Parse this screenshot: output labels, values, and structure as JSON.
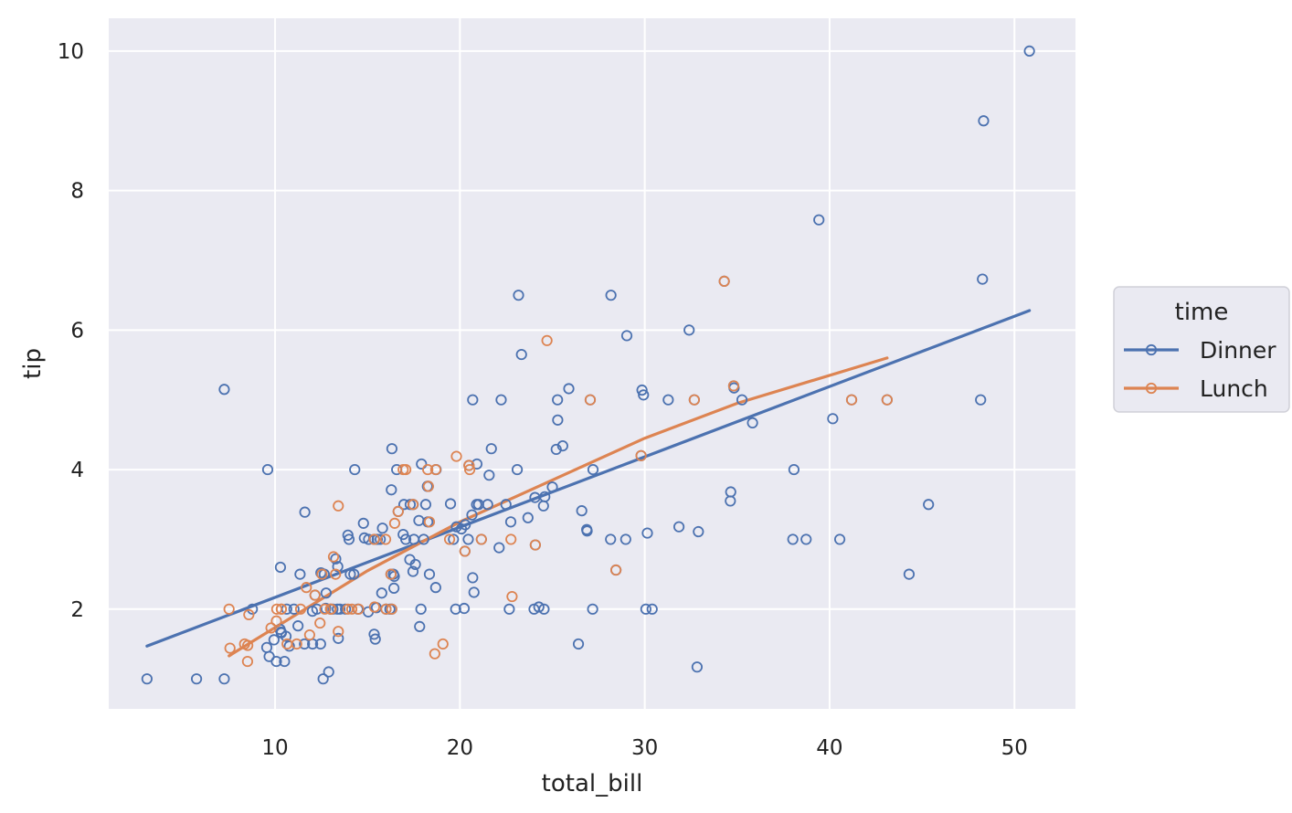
{
  "chart_data": {
    "type": "scatter",
    "xlabel": "total_bill",
    "ylabel": "tip",
    "xlim": [
      1.0,
      53.3
    ],
    "ylim": [
      0.57,
      10.47
    ],
    "xticks": [
      10,
      20,
      30,
      40,
      50
    ],
    "yticks": [
      2,
      4,
      6,
      8,
      10
    ],
    "grid": true,
    "legend": {
      "title": "time",
      "placement": "outside-right"
    },
    "colors": {
      "Dinner": "#4c72b0",
      "Lunch": "#dd8452",
      "background": "#eaeaf2",
      "grid": "#ffffff"
    },
    "series": [
      {
        "name": "Dinner",
        "points": [
          [
            3.07,
            1.0
          ],
          [
            5.75,
            1.0
          ],
          [
            7.25,
            1.0
          ],
          [
            7.25,
            5.15
          ],
          [
            8.77,
            2.0
          ],
          [
            9.55,
            1.45
          ],
          [
            9.6,
            4.0
          ],
          [
            9.68,
            1.32
          ],
          [
            9.94,
            1.56
          ],
          [
            10.07,
            1.25
          ],
          [
            10.29,
            2.6
          ],
          [
            10.33,
            1.67
          ],
          [
            10.34,
            1.66
          ],
          [
            10.51,
            1.25
          ],
          [
            10.59,
            1.61
          ],
          [
            10.63,
            2.0
          ],
          [
            10.77,
            1.47
          ],
          [
            11.02,
            2.0
          ],
          [
            11.24,
            1.76
          ],
          [
            11.35,
            2.5
          ],
          [
            11.59,
            1.5
          ],
          [
            11.61,
            3.39
          ],
          [
            12.02,
            1.97
          ],
          [
            12.03,
            1.5
          ],
          [
            12.16,
            2.2
          ],
          [
            12.26,
            2.0
          ],
          [
            12.46,
            1.5
          ],
          [
            12.6,
            1.0
          ],
          [
            12.66,
            2.5
          ],
          [
            12.74,
            2.01
          ],
          [
            12.76,
            2.23
          ],
          [
            12.9,
            1.1
          ],
          [
            13.0,
            2.0
          ],
          [
            13.28,
            2.72
          ],
          [
            13.37,
            2.0
          ],
          [
            13.39,
            2.61
          ],
          [
            13.42,
            1.58
          ],
          [
            13.81,
            2.0
          ],
          [
            13.94,
            3.06
          ],
          [
            14.07,
            2.5
          ],
          [
            14.26,
            2.5
          ],
          [
            14.31,
            4.0
          ],
          [
            14.48,
            2.0
          ],
          [
            14.78,
            3.23
          ],
          [
            14.83,
            3.02
          ],
          [
            15.04,
            1.96
          ],
          [
            15.06,
            3.0
          ],
          [
            15.36,
            1.64
          ],
          [
            15.38,
            3.0
          ],
          [
            15.42,
            1.57
          ],
          [
            15.48,
            2.02
          ],
          [
            15.69,
            3.0
          ],
          [
            15.77,
            2.23
          ],
          [
            15.81,
            3.16
          ],
          [
            16.0,
            2.0
          ],
          [
            16.21,
            2.0
          ],
          [
            16.27,
            2.5
          ],
          [
            16.29,
            3.71
          ],
          [
            16.31,
            2.0
          ],
          [
            16.32,
            4.3
          ],
          [
            16.4,
            2.5
          ],
          [
            16.45,
            2.47
          ],
          [
            16.66,
            3.4
          ],
          [
            16.93,
            3.07
          ],
          [
            16.97,
            3.5
          ],
          [
            17.07,
            3.0
          ],
          [
            17.29,
            2.71
          ],
          [
            17.31,
            3.5
          ],
          [
            17.46,
            2.54
          ],
          [
            17.59,
            2.64
          ],
          [
            17.78,
            3.27
          ],
          [
            17.82,
            1.75
          ],
          [
            17.89,
            2.0
          ],
          [
            17.92,
            4.08
          ],
          [
            18.04,
            3.0
          ],
          [
            18.15,
            3.5
          ],
          [
            18.24,
            3.76
          ],
          [
            18.29,
            3.76
          ],
          [
            18.35,
            2.5
          ],
          [
            18.69,
            2.31
          ],
          [
            18.71,
            4.0
          ],
          [
            19.49,
            3.51
          ],
          [
            19.65,
            3.0
          ],
          [
            19.77,
            2.0
          ],
          [
            19.81,
            3.18
          ],
          [
            20.08,
            3.15
          ],
          [
            20.23,
            2.01
          ],
          [
            20.27,
            2.83
          ],
          [
            20.29,
            3.21
          ],
          [
            20.45,
            3.0
          ],
          [
            20.49,
            4.06
          ],
          [
            20.65,
            3.35
          ],
          [
            20.69,
            2.45
          ],
          [
            20.76,
            2.24
          ],
          [
            20.69,
            5.0
          ],
          [
            20.9,
            3.5
          ],
          [
            21.01,
            3.5
          ],
          [
            21.16,
            3.0
          ],
          [
            21.58,
            3.92
          ],
          [
            21.7,
            4.3
          ],
          [
            22.12,
            2.88
          ],
          [
            22.23,
            5.0
          ],
          [
            22.49,
            3.5
          ],
          [
            22.75,
            3.25
          ],
          [
            23.1,
            4.0
          ],
          [
            23.17,
            6.5
          ],
          [
            23.33,
            5.65
          ],
          [
            23.68,
            3.31
          ],
          [
            24.01,
            2.0
          ],
          [
            24.06,
            3.6
          ],
          [
            24.27,
            2.03
          ],
          [
            24.52,
            3.48
          ],
          [
            24.55,
            2.0
          ],
          [
            24.59,
            3.61
          ],
          [
            25.0,
            3.75
          ],
          [
            25.21,
            4.29
          ],
          [
            25.28,
            5.0
          ],
          [
            25.29,
            4.71
          ],
          [
            25.56,
            4.34
          ],
          [
            25.89,
            5.16
          ],
          [
            26.41,
            1.5
          ],
          [
            26.59,
            3.41
          ],
          [
            26.88,
            3.12
          ],
          [
            27.05,
            5.0
          ],
          [
            27.18,
            2.0
          ],
          [
            27.2,
            4.0
          ],
          [
            28.15,
            3.0
          ],
          [
            28.17,
            6.5
          ],
          [
            28.44,
            2.56
          ],
          [
            28.97,
            3.0
          ],
          [
            29.03,
            5.92
          ],
          [
            29.8,
            4.2
          ],
          [
            29.85,
            5.14
          ],
          [
            29.93,
            5.07
          ],
          [
            30.06,
            2.0
          ],
          [
            30.14,
            3.09
          ],
          [
            30.4,
            2.0
          ],
          [
            31.27,
            5.0
          ],
          [
            31.85,
            3.18
          ],
          [
            32.4,
            6.0
          ],
          [
            32.68,
            5.0
          ],
          [
            32.83,
            1.17
          ],
          [
            32.9,
            3.11
          ],
          [
            34.3,
            6.7
          ],
          [
            34.63,
            3.55
          ],
          [
            34.65,
            3.68
          ],
          [
            34.81,
            5.2
          ],
          [
            34.83,
            5.17
          ],
          [
            35.26,
            5.0
          ],
          [
            35.83,
            4.67
          ],
          [
            38.01,
            3.0
          ],
          [
            38.07,
            4.0
          ],
          [
            38.73,
            3.0
          ],
          [
            39.42,
            7.58
          ],
          [
            40.17,
            4.73
          ],
          [
            40.55,
            3.0
          ],
          [
            41.19,
            5.0
          ],
          [
            43.11,
            5.0
          ],
          [
            44.3,
            2.5
          ],
          [
            45.35,
            3.5
          ],
          [
            48.17,
            5.0
          ],
          [
            48.27,
            6.73
          ],
          [
            48.33,
            9.0
          ],
          [
            50.81,
            10.0
          ],
          [
            14.0,
            3.0
          ],
          [
            13.51,
            2.0
          ],
          [
            17.51,
            3.0
          ],
          [
            16.58,
            4.0
          ],
          [
            21.5,
            3.5
          ],
          [
            26.86,
            3.14
          ],
          [
            18.26,
            3.25
          ],
          [
            15.53,
            3.0
          ],
          [
            12.48,
            2.52
          ],
          [
            24.08,
            2.92
          ],
          [
            13.13,
            2.0
          ],
          [
            16.43,
            2.3
          ],
          [
            22.67,
            2.0
          ],
          [
            17.47,
            3.5
          ],
          [
            20.92,
            4.08
          ],
          [
            10.27,
            1.71
          ]
        ]
      },
      {
        "name": "Lunch",
        "points": [
          [
            7.51,
            2.0
          ],
          [
            7.56,
            1.44
          ],
          [
            8.35,
            1.5
          ],
          [
            8.51,
            1.25
          ],
          [
            8.52,
            1.48
          ],
          [
            8.58,
            1.92
          ],
          [
            9.78,
            1.73
          ],
          [
            10.07,
            1.83
          ],
          [
            10.09,
            2.0
          ],
          [
            10.34,
            2.0
          ],
          [
            10.65,
            1.5
          ],
          [
            11.17,
            1.5
          ],
          [
            11.38,
            2.0
          ],
          [
            11.69,
            2.31
          ],
          [
            11.87,
            1.63
          ],
          [
            12.43,
            1.8
          ],
          [
            12.54,
            2.5
          ],
          [
            12.69,
            2.0
          ],
          [
            13.03,
            2.0
          ],
          [
            13.16,
            2.75
          ],
          [
            13.42,
            3.48
          ],
          [
            13.42,
            1.68
          ],
          [
            13.94,
            2.0
          ],
          [
            14.15,
            2.0
          ],
          [
            14.52,
            2.0
          ],
          [
            15.38,
            2.03
          ],
          [
            15.98,
            3.0
          ],
          [
            16.0,
            2.0
          ],
          [
            16.27,
            2.5
          ],
          [
            16.47,
            3.23
          ],
          [
            16.66,
            3.4
          ],
          [
            16.93,
            4.0
          ],
          [
            17.07,
            4.0
          ],
          [
            17.46,
            3.5
          ],
          [
            18.26,
            4.0
          ],
          [
            18.29,
            3.76
          ],
          [
            18.35,
            3.25
          ],
          [
            18.64,
            1.36
          ],
          [
            18.69,
            4.0
          ],
          [
            19.08,
            1.5
          ],
          [
            19.44,
            3.0
          ],
          [
            19.81,
            4.19
          ],
          [
            20.27,
            2.83
          ],
          [
            20.49,
            4.06
          ],
          [
            20.53,
            4.0
          ],
          [
            21.16,
            3.0
          ],
          [
            22.76,
            3.0
          ],
          [
            22.82,
            2.18
          ],
          [
            24.08,
            2.92
          ],
          [
            24.71,
            5.85
          ],
          [
            27.05,
            5.0
          ],
          [
            28.44,
            2.56
          ],
          [
            29.8,
            4.2
          ],
          [
            32.68,
            5.0
          ],
          [
            34.3,
            6.7
          ],
          [
            34.81,
            5.2
          ],
          [
            41.19,
            5.0
          ],
          [
            43.11,
            5.0
          ],
          [
            13.0,
            2.0
          ],
          [
            12.16,
            2.2
          ],
          [
            16.31,
            2.0
          ],
          [
            13.27,
            2.5
          ],
          [
            15.36,
            3.0
          ],
          [
            10.34,
            2.0
          ]
        ]
      }
    ],
    "fit_lines": [
      {
        "name": "Dinner",
        "x": [
          3.07,
          50.81
        ],
        "y": [
          1.47,
          6.28
        ]
      },
      {
        "name": "Lunch",
        "x": [
          7.51,
          15.0,
          20.0,
          25.0,
          30.0,
          35.0,
          43.11
        ],
        "y": [
          1.33,
          2.55,
          3.25,
          3.85,
          4.45,
          4.95,
          5.6
        ]
      }
    ]
  }
}
